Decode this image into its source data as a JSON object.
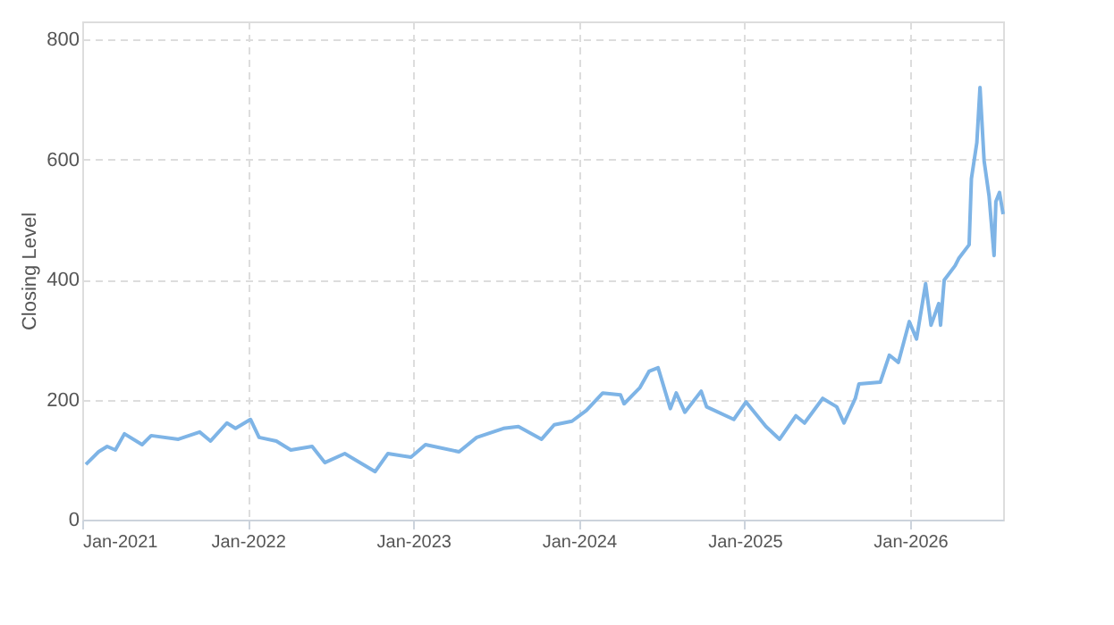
{
  "chart_data": {
    "type": "line",
    "ylabel": "Closing Level",
    "x": [
      "2021-01-09",
      "2021-02-06",
      "2021-02-25",
      "2021-03-15",
      "2021-04-04",
      "2021-05-13",
      "2021-06-02",
      "2021-08-01",
      "2021-09-17",
      "2021-10-11",
      "2021-11-16",
      "2021-12-05",
      "2022-01-07",
      "2022-01-26",
      "2022-03-05",
      "2022-04-06",
      "2022-05-23",
      "2022-06-20",
      "2022-08-03",
      "2022-10-09",
      "2022-11-06",
      "2022-12-27",
      "2023-01-28",
      "2023-04-12",
      "2023-05-21",
      "2023-07-19",
      "2023-08-21",
      "2023-10-11",
      "2023-11-08",
      "2023-12-17",
      "2024-01-18",
      "2024-02-23",
      "2024-04-02",
      "2024-04-10",
      "2024-05-15",
      "2024-06-04",
      "2024-06-24",
      "2024-07-21",
      "2024-08-03",
      "2024-08-22",
      "2024-09-27",
      "2024-10-09",
      "2024-12-08",
      "2025-01-04",
      "2025-02-17",
      "2025-03-19",
      "2025-04-24",
      "2025-05-13",
      "2025-06-22",
      "2025-07-23",
      "2025-08-08",
      "2025-09-02",
      "2025-09-10",
      "2025-10-27",
      "2025-11-16",
      "2025-12-06",
      "2025-12-30",
      "2026-01-15",
      "2026-02-04",
      "2026-02-16",
      "2026-03-05",
      "2026-03-09",
      "2026-03-17",
      "2026-04-10",
      "2026-04-18",
      "2026-05-11",
      "2026-05-16",
      "2026-05-28",
      "2026-06-04",
      "2026-06-13",
      "2026-06-24",
      "2026-07-05",
      "2026-07-09",
      "2026-07-17",
      "2026-07-25"
    ],
    "series": [
      {
        "color": "#7eb4e6",
        "values": [
          92,
          113,
          122,
          116,
          143,
          125,
          140,
          134,
          146,
          131,
          161,
          152,
          167,
          137,
          131,
          116,
          122,
          95,
          110,
          80,
          110,
          104,
          125,
          113,
          137,
          152,
          155,
          134,
          158,
          164,
          182,
          211,
          208,
          193,
          220,
          247,
          253,
          185,
          211,
          179,
          214,
          188,
          167,
          196,
          155,
          134,
          173,
          161,
          202,
          188,
          161,
          202,
          226,
          229,
          274,
          262,
          330,
          301,
          393,
          324,
          360,
          324,
          399,
          423,
          435,
          458,
          568,
          628,
          720,
          598,
          539,
          440,
          530,
          545,
          509
        ]
      }
    ],
    "xlim": [
      "2021-01-01",
      "2026-07-25"
    ],
    "xticks": [
      {
        "value": "2021-01-01",
        "label": "Jan-2021"
      },
      {
        "value": "2022-01-01",
        "label": "Jan-2022"
      },
      {
        "value": "2023-01-01",
        "label": "Jan-2023"
      },
      {
        "value": "2024-01-01",
        "label": "Jan-2024"
      },
      {
        "value": "2025-01-01",
        "label": "Jan-2025"
      },
      {
        "value": "2026-01-01",
        "label": "Jan-2026"
      }
    ],
    "ylim": [
      0,
      830
    ],
    "yticks": [
      0,
      200,
      400,
      600,
      800
    ],
    "grid": true,
    "legend": false,
    "marker": "none",
    "line_style": "solid"
  }
}
